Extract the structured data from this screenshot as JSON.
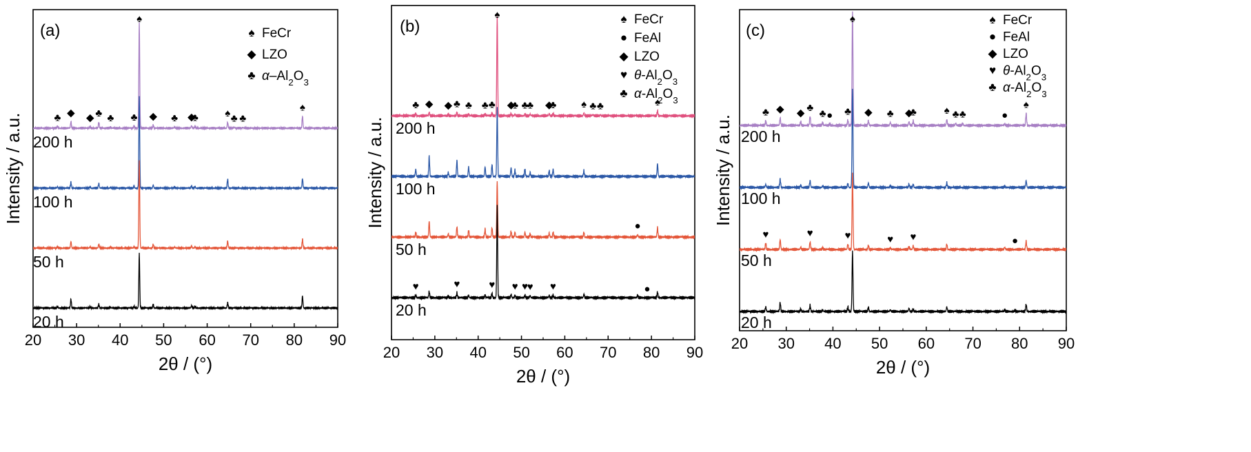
{
  "chart_data": [
    {
      "type": "line",
      "panel_label": "(a)",
      "xlabel": "2θ / (°)",
      "ylabel": "Intensity / a.u.",
      "xlim": [
        20,
        90
      ],
      "xticks": [
        20,
        30,
        40,
        50,
        60,
        70,
        80,
        90
      ],
      "legend": [
        {
          "symbol": "spade",
          "label": "FeCr"
        },
        {
          "symbol": "diamond",
          "label": "LZO"
        },
        {
          "symbol": "club",
          "label": "α–Al2O3"
        }
      ],
      "series": [
        {
          "name": "200 h",
          "color": "#a77fc4",
          "offset": 3,
          "peaks": [
            [
              25.6,
              0.06
            ],
            [
              28.7,
              0.22
            ],
            [
              33.1,
              0.06
            ],
            [
              35.1,
              0.2
            ],
            [
              37.8,
              0.04
            ],
            [
              43.2,
              0.07
            ],
            [
              44.4,
              3.5
            ],
            [
              47.6,
              0.1
            ],
            [
              52.5,
              0.04
            ],
            [
              56.4,
              0.08
            ],
            [
              57.2,
              0.06
            ],
            [
              64.7,
              0.2
            ],
            [
              66.2,
              0.03
            ],
            [
              68.2,
              0.03
            ],
            [
              81.9,
              0.4
            ]
          ]
        },
        {
          "name": "100 h",
          "color": "#2a57a6",
          "offset": 2,
          "peaks": [
            [
              25.6,
              0.05
            ],
            [
              28.7,
              0.2
            ],
            [
              33.1,
              0.05
            ],
            [
              35.1,
              0.16
            ],
            [
              37.8,
              0.03
            ],
            [
              43.2,
              0.06
            ],
            [
              44.4,
              3.0
            ],
            [
              47.6,
              0.1
            ],
            [
              52.5,
              0.03
            ],
            [
              56.4,
              0.07
            ],
            [
              57.2,
              0.05
            ],
            [
              64.7,
              0.3
            ],
            [
              81.9,
              0.32
            ]
          ]
        },
        {
          "name": "50 h",
          "color": "#e4573a",
          "offset": 1,
          "peaks": [
            [
              25.6,
              0.04
            ],
            [
              28.7,
              0.22
            ],
            [
              33.1,
              0.05
            ],
            [
              35.1,
              0.14
            ],
            [
              37.8,
              0.03
            ],
            [
              43.2,
              0.05
            ],
            [
              44.4,
              2.9
            ],
            [
              47.6,
              0.12
            ],
            [
              52.5,
              0.03
            ],
            [
              56.4,
              0.07
            ],
            [
              57.2,
              0.05
            ],
            [
              64.7,
              0.24
            ],
            [
              81.9,
              0.3
            ]
          ]
        },
        {
          "name": "20 h",
          "color": "#000000",
          "offset": 0,
          "peaks": [
            [
              25.6,
              0.04
            ],
            [
              28.7,
              0.3
            ],
            [
              33.1,
              0.04
            ],
            [
              35.1,
              0.12
            ],
            [
              37.8,
              0.03
            ],
            [
              43.2,
              0.05
            ],
            [
              44.4,
              1.8
            ],
            [
              47.6,
              0.12
            ],
            [
              56.4,
              0.08
            ],
            [
              57.2,
              0.05
            ],
            [
              64.7,
              0.18
            ],
            [
              81.9,
              0.4
            ]
          ]
        }
      ],
      "markers": [
        {
          "series": "200 h",
          "symbol": "club",
          "x": [
            25.6,
            35.1,
            37.8,
            43.2,
            52.5,
            57.2,
            66.2,
            68.2
          ]
        },
        {
          "series": "200 h",
          "symbol": "diamond",
          "x": [
            28.7,
            33.1,
            47.6,
            56.4
          ]
        },
        {
          "series": "200 h",
          "symbol": "spade",
          "x": [
            44.4,
            64.7,
            81.9
          ]
        }
      ]
    },
    {
      "type": "line",
      "panel_label": "(b)",
      "xlabel": "2θ / (°)",
      "ylabel": "Intensity / a.u.",
      "xlim": [
        20,
        90
      ],
      "xticks": [
        20,
        30,
        40,
        50,
        60,
        70,
        80,
        90
      ],
      "legend": [
        {
          "symbol": "spade",
          "label": "FeCr"
        },
        {
          "symbol": "circle",
          "label": "FeAl"
        },
        {
          "symbol": "diamond",
          "label": "LZO"
        },
        {
          "symbol": "heart",
          "label": "θ-Al2O3"
        },
        {
          "symbol": "club",
          "label": "α-Al2O3"
        }
      ],
      "series": [
        {
          "name": "200 h",
          "color": "#e0507e",
          "offset": 3,
          "peaks": [
            [
              25.6,
              0.05
            ],
            [
              28.7,
              0.08
            ],
            [
              33.1,
              0.04
            ],
            [
              35.1,
              0.08
            ],
            [
              37.8,
              0.04
            ],
            [
              41.6,
              0.04
            ],
            [
              43.2,
              0.06
            ],
            [
              44.4,
              2.5
            ],
            [
              47.6,
              0.05
            ],
            [
              48.5,
              0.04
            ],
            [
              50.8,
              0.04
            ],
            [
              52.0,
              0.04
            ],
            [
              56.4,
              0.05
            ],
            [
              57.3,
              0.05
            ],
            [
              64.4,
              0.07
            ],
            [
              66.5,
              0.03
            ],
            [
              68.2,
              0.03
            ],
            [
              81.4,
              0.12
            ]
          ]
        },
        {
          "name": "100 h",
          "color": "#2a57a6",
          "offset": 2,
          "peaks": [
            [
              25.6,
              0.18
            ],
            [
              28.7,
              0.5
            ],
            [
              33.1,
              0.1
            ],
            [
              35.1,
              0.4
            ],
            [
              37.8,
              0.24
            ],
            [
              41.6,
              0.24
            ],
            [
              43.2,
              0.3
            ],
            [
              44.4,
              1.7
            ],
            [
              47.6,
              0.22
            ],
            [
              48.5,
              0.16
            ],
            [
              50.8,
              0.18
            ],
            [
              52.0,
              0.1
            ],
            [
              56.4,
              0.14
            ],
            [
              57.3,
              0.18
            ],
            [
              64.4,
              0.14
            ],
            [
              81.4,
              0.32
            ]
          ]
        },
        {
          "name": "50 h",
          "color": "#e4573a",
          "offset": 1,
          "peaks": [
            [
              25.6,
              0.12
            ],
            [
              28.7,
              0.4
            ],
            [
              33.1,
              0.08
            ],
            [
              35.1,
              0.26
            ],
            [
              37.8,
              0.16
            ],
            [
              41.6,
              0.2
            ],
            [
              43.2,
              0.24
            ],
            [
              44.4,
              1.4
            ],
            [
              47.6,
              0.14
            ],
            [
              48.5,
              0.12
            ],
            [
              50.8,
              0.12
            ],
            [
              52.0,
              0.08
            ],
            [
              56.4,
              0.1
            ],
            [
              57.3,
              0.12
            ],
            [
              64.4,
              0.12
            ],
            [
              76.8,
              0.06
            ],
            [
              81.4,
              0.24
            ]
          ]
        },
        {
          "name": "20 h",
          "color": "#000000",
          "offset": 0,
          "peaks": [
            [
              25.6,
              0.06
            ],
            [
              28.7,
              0.16
            ],
            [
              33.1,
              0.04
            ],
            [
              35.1,
              0.12
            ],
            [
              37.8,
              0.06
            ],
            [
              41.6,
              0.06
            ],
            [
              43.2,
              0.1
            ],
            [
              44.4,
              2.3
            ],
            [
              47.6,
              0.08
            ],
            [
              48.5,
              0.06
            ],
            [
              50.8,
              0.06
            ],
            [
              52.0,
              0.05
            ],
            [
              56.4,
              0.06
            ],
            [
              57.3,
              0.06
            ],
            [
              64.4,
              0.08
            ],
            [
              76.8,
              0.06
            ],
            [
              81.4,
              0.14
            ]
          ]
        }
      ],
      "markers": [
        {
          "series": "200 h",
          "symbol": "club",
          "x": [
            25.6,
            35.1,
            37.8,
            41.6,
            43.2,
            48.5,
            50.8,
            52.0,
            57.3,
            66.5,
            68.2
          ]
        },
        {
          "series": "200 h",
          "symbol": "diamond",
          "x": [
            28.7,
            33.1,
            47.6,
            56.4
          ]
        },
        {
          "series": "200 h",
          "symbol": "spade",
          "x": [
            44.4,
            64.4,
            81.4
          ]
        },
        {
          "series": "50 h",
          "symbol": "circle",
          "x": [
            76.8
          ]
        },
        {
          "series": "20 h",
          "symbol": "heart",
          "x": [
            25.6,
            35.1,
            43.2,
            48.5,
            50.8,
            52.0,
            57.3
          ]
        },
        {
          "series": "20 h",
          "symbol": "circle",
          "x": [
            79.0
          ]
        }
      ]
    },
    {
      "type": "line",
      "panel_label": "(c)",
      "xlabel": "2θ / (°)",
      "ylabel": "Intensity / a.u.",
      "xlim": [
        20,
        90
      ],
      "xticks": [
        20,
        30,
        40,
        50,
        60,
        70,
        80,
        90
      ],
      "legend": [
        {
          "symbol": "spade",
          "label": "FeCr"
        },
        {
          "symbol": "circle",
          "label": "FeAl"
        },
        {
          "symbol": "diamond",
          "label": "LZO"
        },
        {
          "symbol": "heart",
          "label": "θ-Al2O3"
        },
        {
          "symbol": "club",
          "label": "α-Al2O3"
        }
      ],
      "series": [
        {
          "name": "200 h",
          "color": "#a77fc4",
          "offset": 3,
          "peaks": [
            [
              25.6,
              0.12
            ],
            [
              28.7,
              0.2
            ],
            [
              33.1,
              0.1
            ],
            [
              35.1,
              0.24
            ],
            [
              37.8,
              0.08
            ],
            [
              39.3,
              0.04
            ],
            [
              43.2,
              0.14
            ],
            [
              44.2,
              3.0
            ],
            [
              47.6,
              0.12
            ],
            [
              52.3,
              0.08
            ],
            [
              56.3,
              0.1
            ],
            [
              57.2,
              0.12
            ],
            [
              64.4,
              0.16
            ],
            [
              66.3,
              0.06
            ],
            [
              67.8,
              0.06
            ],
            [
              76.8,
              0.04
            ],
            [
              81.4,
              0.32
            ]
          ]
        },
        {
          "name": "100 h",
          "color": "#2a57a6",
          "offset": 2,
          "peaks": [
            [
              25.6,
              0.08
            ],
            [
              28.7,
              0.22
            ],
            [
              33.1,
              0.06
            ],
            [
              35.1,
              0.18
            ],
            [
              37.8,
              0.04
            ],
            [
              43.2,
              0.1
            ],
            [
              44.2,
              2.6
            ],
            [
              47.6,
              0.12
            ],
            [
              52.3,
              0.04
            ],
            [
              56.3,
              0.08
            ],
            [
              57.2,
              0.08
            ],
            [
              64.4,
              0.12
            ],
            [
              76.8,
              0.03
            ],
            [
              81.4,
              0.18
            ]
          ]
        },
        {
          "name": "50 h",
          "color": "#e4573a",
          "offset": 1,
          "peaks": [
            [
              25.6,
              0.16
            ],
            [
              28.7,
              0.26
            ],
            [
              33.1,
              0.06
            ],
            [
              35.1,
              0.2
            ],
            [
              37.8,
              0.04
            ],
            [
              43.2,
              0.14
            ],
            [
              44.2,
              2.0
            ],
            [
              47.6,
              0.1
            ],
            [
              52.3,
              0.04
            ],
            [
              56.3,
              0.08
            ],
            [
              57.2,
              0.1
            ],
            [
              64.4,
              0.14
            ],
            [
              76.8,
              0.06
            ],
            [
              81.4,
              0.22
            ]
          ]
        },
        {
          "name": "20 h",
          "color": "#000000",
          "offset": 0,
          "peaks": [
            [
              25.6,
              0.12
            ],
            [
              28.7,
              0.24
            ],
            [
              33.1,
              0.06
            ],
            [
              35.1,
              0.16
            ],
            [
              37.8,
              0.04
            ],
            [
              43.2,
              0.12
            ],
            [
              44.2,
              1.6
            ],
            [
              47.6,
              0.12
            ],
            [
              52.3,
              0.04
            ],
            [
              56.3,
              0.08
            ],
            [
              57.2,
              0.06
            ],
            [
              64.4,
              0.12
            ],
            [
              76.8,
              0.04
            ],
            [
              79.0,
              0.03
            ],
            [
              81.4,
              0.18
            ]
          ]
        }
      ],
      "markers": [
        {
          "series": "200 h",
          "symbol": "club",
          "x": [
            25.6,
            35.1,
            37.8,
            43.2,
            52.3,
            57.2,
            66.3,
            67.8
          ]
        },
        {
          "series": "200 h",
          "symbol": "diamond",
          "x": [
            28.7,
            33.1,
            47.6,
            56.3
          ]
        },
        {
          "series": "200 h",
          "symbol": "spade",
          "x": [
            44.2,
            64.4,
            81.4
          ]
        },
        {
          "series": "200 h",
          "symbol": "circle",
          "x": [
            39.3,
            76.8
          ]
        },
        {
          "series": "50 h",
          "symbol": "heart",
          "x": [
            25.6,
            35.1,
            43.2,
            52.3,
            57.2
          ]
        },
        {
          "series": "50 h",
          "symbol": "circle",
          "x": [
            79.0
          ]
        }
      ]
    }
  ]
}
